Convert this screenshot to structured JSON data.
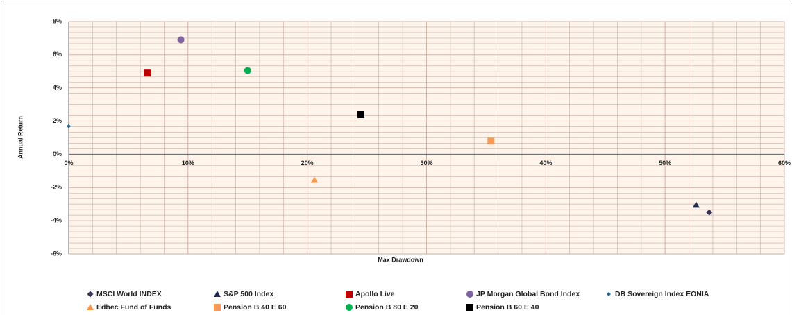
{
  "chart_data": {
    "type": "scatter",
    "x_label": "Max Drawdown",
    "y_label": "Annual Return",
    "xlim": [
      0,
      60
    ],
    "ylim": [
      -6,
      8
    ],
    "xticks": [
      {
        "value": 0,
        "label": "0%"
      },
      {
        "value": 10,
        "label": "10%"
      },
      {
        "value": 20,
        "label": "20%"
      },
      {
        "value": 30,
        "label": "30%"
      },
      {
        "value": 40,
        "label": "40%"
      },
      {
        "value": 50,
        "label": "50%"
      },
      {
        "value": 60,
        "label": "60%"
      }
    ],
    "yticks": [
      {
        "value": -6,
        "label": "-6%"
      },
      {
        "value": -4,
        "label": "-4%"
      },
      {
        "value": -2,
        "label": "-2%"
      },
      {
        "value": 0,
        "label": "0%"
      },
      {
        "value": 2,
        "label": "2%"
      },
      {
        "value": 4,
        "label": "4%"
      },
      {
        "value": 6,
        "label": "6%"
      },
      {
        "value": 8,
        "label": "8%"
      }
    ],
    "grid": true,
    "legend": "bottom",
    "series": [
      {
        "name": "MSCI World INDEX",
        "color": "#3b3356",
        "marker": "diamond",
        "x": [
          53.7
        ],
        "y": [
          -3.5
        ]
      },
      {
        "name": "S&P 500 Index",
        "color": "#1f2d4a",
        "marker": "triangle",
        "x": [
          52.6
        ],
        "y": [
          -3.05
        ]
      },
      {
        "name": "Apollo Live",
        "color": "#c00000",
        "marker": "square",
        "x": [
          6.6
        ],
        "y": [
          4.9
        ]
      },
      {
        "name": "JP Morgan Global Bond Index",
        "color": "#8064a2",
        "marker": "circle",
        "x": [
          9.4
        ],
        "y": [
          6.9
        ]
      },
      {
        "name": "DB Sovereign Index EONIA",
        "color": "#1f6391",
        "marker": "small-diamond",
        "x": [
          0
        ],
        "y": [
          1.7
        ]
      },
      {
        "name": "Edhec Fund of Funds",
        "color": "#f79646",
        "marker": "triangle",
        "x": [
          20.6
        ],
        "y": [
          -1.55
        ]
      },
      {
        "name": "Pension B 40 E 60",
        "color": "#f59a57",
        "marker": "square",
        "x": [
          35.4
        ],
        "y": [
          0.8
        ]
      },
      {
        "name": "Pension B 80 E 20",
        "color": "#00b050",
        "marker": "circle",
        "x": [
          15.0
        ],
        "y": [
          5.05
        ]
      },
      {
        "name": "Pension B 60 E 40",
        "color": "#000000",
        "marker": "square",
        "x": [
          24.5
        ],
        "y": [
          2.4
        ]
      }
    ]
  }
}
